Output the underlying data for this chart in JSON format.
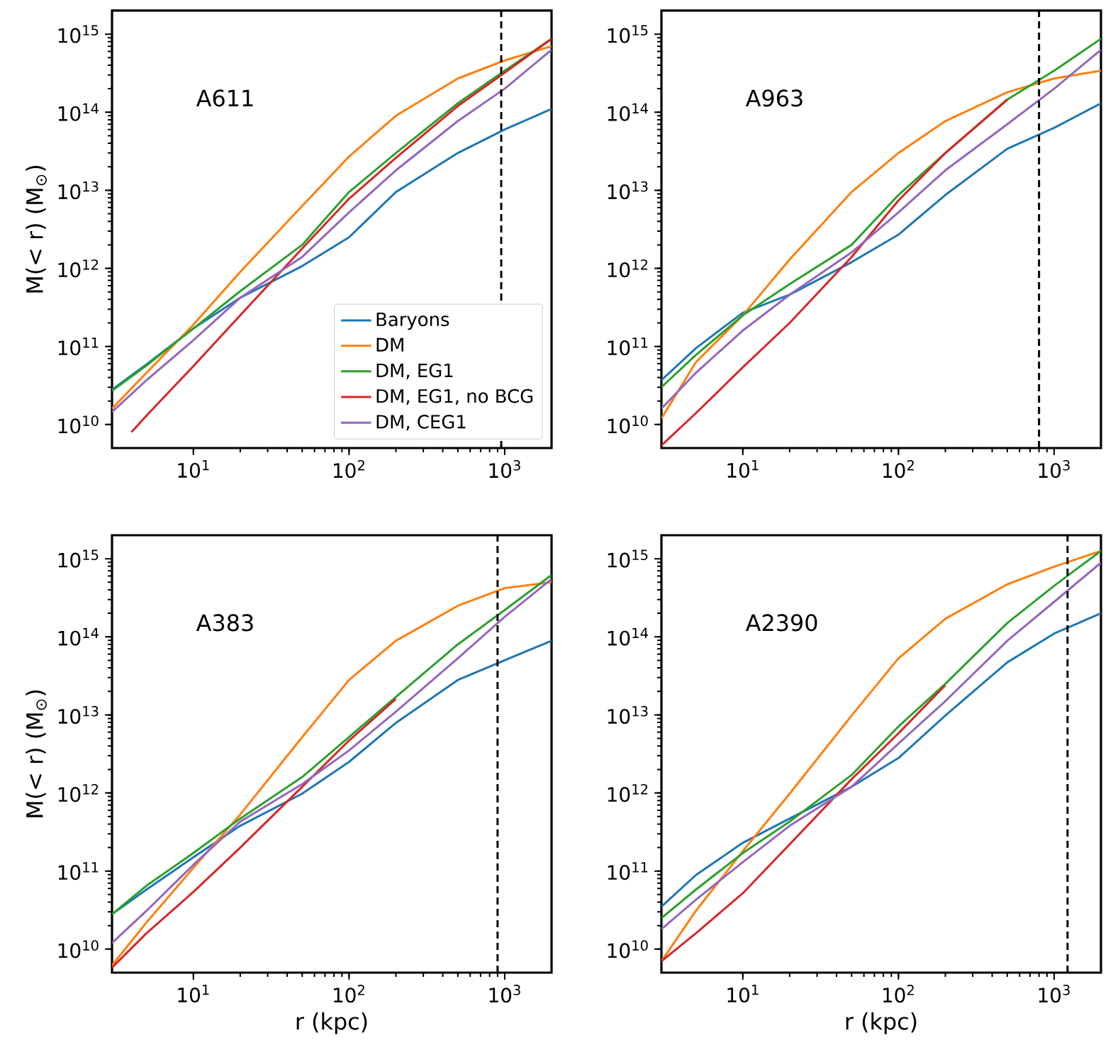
{
  "chart_data": [
    {
      "type": "line",
      "annotations": [
        "A611"
      ],
      "ylabel": "M(< r) (M$_{⊙}$)",
      "log": "xy",
      "legend": "bottom right",
      "xlim": [
        3,
        2000
      ],
      "ylim": [
        5000000000.0,
        2000000000000000.0
      ],
      "xticks": [
        {
          "value": 10,
          "label": "10$^{1}$"
        },
        {
          "value": 100,
          "label": "10$^{2}$"
        },
        {
          "value": 1000,
          "label": "10$^{3}$"
        }
      ],
      "yticks": [
        {
          "value": 10000000000.0,
          "label": "10$^{10}$"
        },
        {
          "value": 100000000000.0,
          "label": "10$^{11}$"
        },
        {
          "value": 1000000000000.0,
          "label": "10$^{12}$"
        },
        {
          "value": 10000000000000.0,
          "label": "10$^{13}$"
        },
        {
          "value": 100000000000000.0,
          "label": "10$^{14}$"
        },
        {
          "value": 1000000000000000.0,
          "label": "10$^{15}$"
        }
      ],
      "ref_lines": [
        {
          "axis": "x",
          "value": 950,
          "line_style": "dashed",
          "color": "#000000"
        }
      ],
      "x": [
        3,
        5,
        10,
        20,
        50,
        100,
        200,
        500,
        1000,
        2000
      ],
      "series": [
        {
          "name": "Baryons",
          "color": "#1f77b4",
          "values": [
            28000000000.0,
            59000000000.0,
            170000000000.0,
            420000000000.0,
            1070000000000.0,
            2500000000000.0,
            9500000000000.0,
            30000000000000.0,
            60000000000000.0,
            110000000000000.0
          ]
        },
        {
          "name": "DM",
          "color": "#ff7f0e",
          "values": [
            16000000000.0,
            46000000000.0,
            190000000000.0,
            900000000000.0,
            6300000000000.0,
            27000000000000.0,
            90000000000000.0,
            270000000000000.0,
            460000000000000.0,
            700000000000000.0
          ]
        },
        {
          "name": "DM, EG1",
          "color": "#2ca02c",
          "values": [
            27000000000.0,
            57000000000.0,
            170000000000.0,
            510000000000.0,
            2000000000000.0,
            9500000000000.0,
            30000000000000.0,
            130000000000000.0,
            340000000000000.0,
            870000000000000.0
          ]
        },
        {
          "name": "DM, EG1, no BCG",
          "color": "#d62728",
          "x": [
            4,
            5,
            10,
            20,
            50,
            100,
            200,
            500,
            1000,
            2000
          ],
          "values": [
            8000000000.0,
            13000000000.0,
            56000000000.0,
            250000000000.0,
            1800000000000.0,
            7800000000000.0,
            26000000000000.0,
            120000000000000.0,
            320000000000000.0,
            870000000000000.0
          ]
        },
        {
          "name": "DM, CEG1",
          "color": "#9467bd",
          "values": [
            14500000000.0,
            37000000000.0,
            120000000000.0,
            420000000000.0,
            1400000000000.0,
            5200000000000.0,
            18000000000000.0,
            77000000000000.0,
            200000000000000.0,
            630000000000000.0
          ]
        }
      ]
    },
    {
      "type": "line",
      "annotations": [
        "A963"
      ],
      "log": "xy",
      "xlim": [
        3,
        2000
      ],
      "ylim": [
        5000000000.0,
        2000000000000000.0
      ],
      "xticks": [
        {
          "value": 10,
          "label": "10$^{1}$"
        },
        {
          "value": 100,
          "label": "10$^{2}$"
        },
        {
          "value": 1000,
          "label": "10$^{3}$"
        }
      ],
      "yticks": [
        {
          "value": 10000000000.0,
          "label": "10$^{10}$"
        },
        {
          "value": 100000000000.0,
          "label": "10$^{11}$"
        },
        {
          "value": 1000000000000.0,
          "label": "10$^{12}$"
        },
        {
          "value": 10000000000000.0,
          "label": "10$^{13}$"
        },
        {
          "value": 100000000000000.0,
          "label": "10$^{14}$"
        },
        {
          "value": 1000000000000000.0,
          "label": "10$^{15}$"
        }
      ],
      "ref_lines": [
        {
          "axis": "x",
          "value": 800,
          "line_style": "dashed",
          "color": "#000000"
        }
      ],
      "x": [
        3,
        5,
        10,
        20,
        50,
        100,
        200,
        500,
        1000,
        2000
      ],
      "series": [
        {
          "color": "#1f77b4",
          "values": [
            37000000000.0,
            95000000000.0,
            270000000000.0,
            460000000000.0,
            1200000000000.0,
            2700000000000.0,
            8700000000000.0,
            34000000000000.0,
            63000000000000.0,
            130000000000000.0
          ]
        },
        {
          "color": "#ff7f0e",
          "values": [
            12000000000.0,
            63000000000.0,
            250000000000.0,
            1300000000000.0,
            9500000000000.0,
            30000000000000.0,
            77000000000000.0,
            180000000000000.0,
            270000000000000.0,
            340000000000000.0
          ]
        },
        {
          "color": "#2ca02c",
          "values": [
            30000000000.0,
            78000000000.0,
            250000000000.0,
            630000000000.0,
            2000000000000.0,
            8700000000000.0,
            30000000000000.0,
            145000000000000.0,
            340000000000000.0,
            870000000000000.0
          ]
        },
        {
          "color": "#d62728",
          "values": [
            5400000000.0,
            14000000000.0,
            54000000000.0,
            200000000000.0,
            1400000000000.0,
            7400000000000.0,
            30000000000000.0,
            145000000000000.0,
            null,
            null
          ]
        },
        {
          "color": "#9467bd",
          "values": [
            16000000000.0,
            46000000000.0,
            160000000000.0,
            460000000000.0,
            1600000000000.0,
            5200000000000.0,
            18000000000000.0,
            70000000000000.0,
            200000000000000.0,
            630000000000000.0
          ]
        }
      ]
    },
    {
      "type": "line",
      "annotations": [
        "A383"
      ],
      "xlabel": "r (kpc)",
      "ylabel": "M(< r) (M$_{⊙}$)",
      "log": "xy",
      "xlim": [
        3,
        2000
      ],
      "ylim": [
        5000000000.0,
        2000000000000000.0
      ],
      "xticks": [
        {
          "value": 10,
          "label": "10$^{1}$"
        },
        {
          "value": 100,
          "label": "10$^{2}$"
        },
        {
          "value": 1000,
          "label": "10$^{3}$"
        }
      ],
      "yticks": [
        {
          "value": 10000000000.0,
          "label": "10$^{10}$"
        },
        {
          "value": 100000000000.0,
          "label": "10$^{11}$"
        },
        {
          "value": 1000000000000.0,
          "label": "10$^{12}$"
        },
        {
          "value": 10000000000000.0,
          "label": "10$^{13}$"
        },
        {
          "value": 100000000000000.0,
          "label": "10$^{14}$"
        },
        {
          "value": 1000000000000000.0,
          "label": "10$^{15}$"
        }
      ],
      "ref_lines": [
        {
          "axis": "x",
          "value": 900,
          "line_style": "dashed",
          "color": "#000000"
        }
      ],
      "x": [
        3,
        5,
        10,
        20,
        50,
        100,
        200,
        500,
        1000,
        2000
      ],
      "series": [
        {
          "color": "#1f77b4",
          "values": [
            28000000000.0,
            58000000000.0,
            150000000000.0,
            380000000000.0,
            980000000000.0,
            2500000000000.0,
            7900000000000.0,
            28000000000000.0,
            50000000000000.0,
            89000000000000.0
          ]
        },
        {
          "color": "#ff7f0e",
          "values": [
            6200000000.0,
            22000000000.0,
            110000000000.0,
            530000000000.0,
            5200000000000.0,
            28000000000000.0,
            89000000000000.0,
            250000000000000.0,
            420000000000000.0,
            500000000000000.0
          ]
        },
        {
          "color": "#2ca02c",
          "values": [
            28000000000.0,
            65000000000.0,
            170000000000.0,
            470000000000.0,
            1600000000000.0,
            5200000000000.0,
            17000000000000.0,
            80000000000000.0,
            220000000000000.0,
            620000000000000.0
          ]
        },
        {
          "color": "#d62728",
          "values": [
            5800000000.0,
            16000000000.0,
            54000000000.0,
            200000000000.0,
            1200000000000.0,
            4700000000000.0,
            16000000000000.0,
            null,
            null,
            null
          ]
        },
        {
          "color": "#9467bd",
          "values": [
            12000000000.0,
            31000000000.0,
            120000000000.0,
            430000000000.0,
            1300000000000.0,
            3500000000000.0,
            11000000000000.0,
            53000000000000.0,
            180000000000000.0,
            550000000000000.0
          ]
        }
      ]
    },
    {
      "type": "line",
      "annotations": [
        "A2390"
      ],
      "xlabel": "r (kpc)",
      "log": "xy",
      "xlim": [
        3,
        2000
      ],
      "ylim": [
        5000000000.0,
        2000000000000000.0
      ],
      "xticks": [
        {
          "value": 10,
          "label": "10$^{1}$"
        },
        {
          "value": 100,
          "label": "10$^{2}$"
        },
        {
          "value": 1000,
          "label": "10$^{3}$"
        }
      ],
      "yticks": [
        {
          "value": 10000000000.0,
          "label": "10$^{10}$"
        },
        {
          "value": 100000000000.0,
          "label": "10$^{11}$"
        },
        {
          "value": 1000000000000.0,
          "label": "10$^{12}$"
        },
        {
          "value": 10000000000000.0,
          "label": "10$^{13}$"
        },
        {
          "value": 100000000000000.0,
          "label": "10$^{14}$"
        },
        {
          "value": 1000000000000000.0,
          "label": "10$^{15}$"
        }
      ],
      "ref_lines": [
        {
          "axis": "x",
          "value": 1220,
          "line_style": "dashed",
          "color": "#000000"
        }
      ],
      "x": [
        3,
        5,
        10,
        20,
        50,
        100,
        200,
        500,
        1000,
        2000
      ],
      "series": [
        {
          "color": "#1f77b4",
          "values": [
            35000000000.0,
            89000000000.0,
            230000000000.0,
            470000000000.0,
            1200000000000.0,
            2800000000000.0,
            9800000000000.0,
            47000000000000.0,
            110000000000000.0,
            200000000000000.0
          ]
        },
        {
          "color": "#ff7f0e",
          "values": [
            7000000000.0,
            31000000000.0,
            180000000000.0,
            980000000000.0,
            9800000000000.0,
            53000000000000.0,
            170000000000000.0,
            470000000000000.0,
            790000000000000.0,
            1260000000000000.0
          ]
        },
        {
          "color": "#2ca02c",
          "values": [
            25000000000.0,
            58000000000.0,
            170000000000.0,
            430000000000.0,
            1700000000000.0,
            7100000000000.0,
            25000000000000.0,
            150000000000000.0,
            450000000000000.0,
            1260000000000000.0
          ]
        },
        {
          "color": "#d62728",
          "values": [
            7000000000.0,
            16000000000.0,
            52000000000.0,
            220000000000.0,
            1500000000000.0,
            5800000000000.0,
            24000000000000.0,
            null,
            null,
            null
          ]
        },
        {
          "color": "#9467bd",
          "values": [
            18000000000.0,
            43000000000.0,
            130000000000.0,
            380000000000.0,
            1200000000000.0,
            4300000000000.0,
            15000000000000.0,
            89000000000000.0,
            280000000000000.0,
            890000000000000.0
          ]
        }
      ]
    }
  ]
}
